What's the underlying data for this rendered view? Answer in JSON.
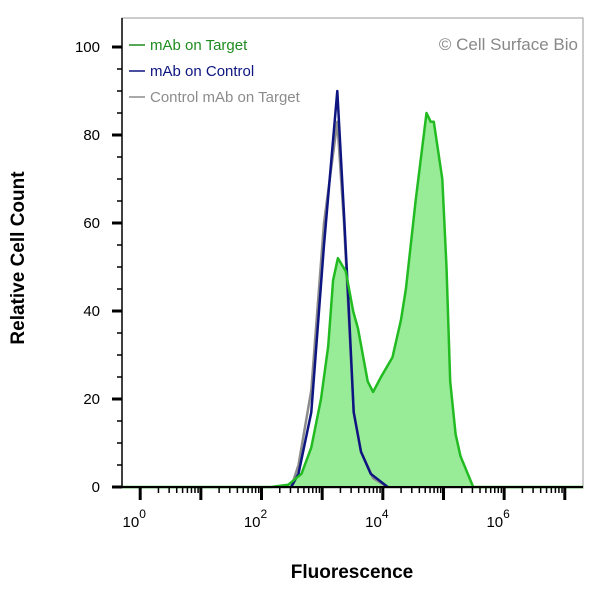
{
  "chart_data": {
    "type": "area",
    "title": "",
    "xlabel": "Fluorescence",
    "ylabel": "Relative Cell Count",
    "xscale": "log10",
    "xlim_log10": [
      -0.3,
      7.3
    ],
    "ylim": [
      0,
      105
    ],
    "xticks": [
      {
        "base": "10",
        "exp": "0",
        "log": 0
      },
      {
        "base": "10",
        "exp": "2",
        "log": 2
      },
      {
        "base": "10",
        "exp": "4",
        "log": 4
      },
      {
        "base": "10",
        "exp": "6",
        "log": 6
      }
    ],
    "yticks": [
      0,
      20,
      40,
      60,
      80,
      100
    ],
    "watermark": "© Cell Surface Bio",
    "legend_position": "top-left",
    "series": [
      {
        "name": "Control mAb on Target",
        "color": "#8c8c8c",
        "fill": false,
        "x_log10": [
          2.49,
          2.61,
          2.82,
          3.03,
          3.25,
          3.36,
          3.44,
          3.52,
          3.64,
          3.84,
          4.08
        ],
        "y": [
          0,
          5,
          22,
          60,
          83,
          60,
          38,
          17,
          8,
          2,
          0
        ]
      },
      {
        "name": "mAb on Control",
        "color": "#0d1580",
        "fill": false,
        "x_log10": [
          2.49,
          2.61,
          2.82,
          3.03,
          3.25,
          3.36,
          3.44,
          3.52,
          3.64,
          3.8,
          4.08
        ],
        "y": [
          0,
          3,
          17,
          55,
          90,
          62,
          40,
          17,
          8,
          3,
          0
        ]
      },
      {
        "name": "mAb on Target",
        "color": "#22bb22",
        "fill": "#98ec98",
        "fill_under": true,
        "x_log10": [
          -0.3,
          2.16,
          2.44,
          2.66,
          2.82,
          2.98,
          3.1,
          3.18,
          3.26,
          3.39,
          3.51,
          3.59,
          3.75,
          3.84,
          3.97,
          4.16,
          4.3,
          4.38,
          4.54,
          4.72,
          4.79,
          4.84,
          4.98,
          5.05,
          5.11,
          5.2,
          5.28,
          5.49,
          7.3
        ],
        "y": [
          0,
          0,
          0.5,
          3,
          9,
          20,
          32,
          47,
          52,
          49,
          40,
          36,
          24,
          21.6,
          25,
          29.5,
          38,
          45,
          65,
          85,
          83,
          83,
          70,
          50,
          24,
          12,
          7,
          0,
          0
        ]
      }
    ],
    "legend": [
      {
        "label": "mAb on Target",
        "color": "#1e8c1e"
      },
      {
        "label": "mAb on Control",
        "color": "#0d1580"
      },
      {
        "label": "Control mAb on Target",
        "color": "#8c8c8c"
      }
    ]
  }
}
